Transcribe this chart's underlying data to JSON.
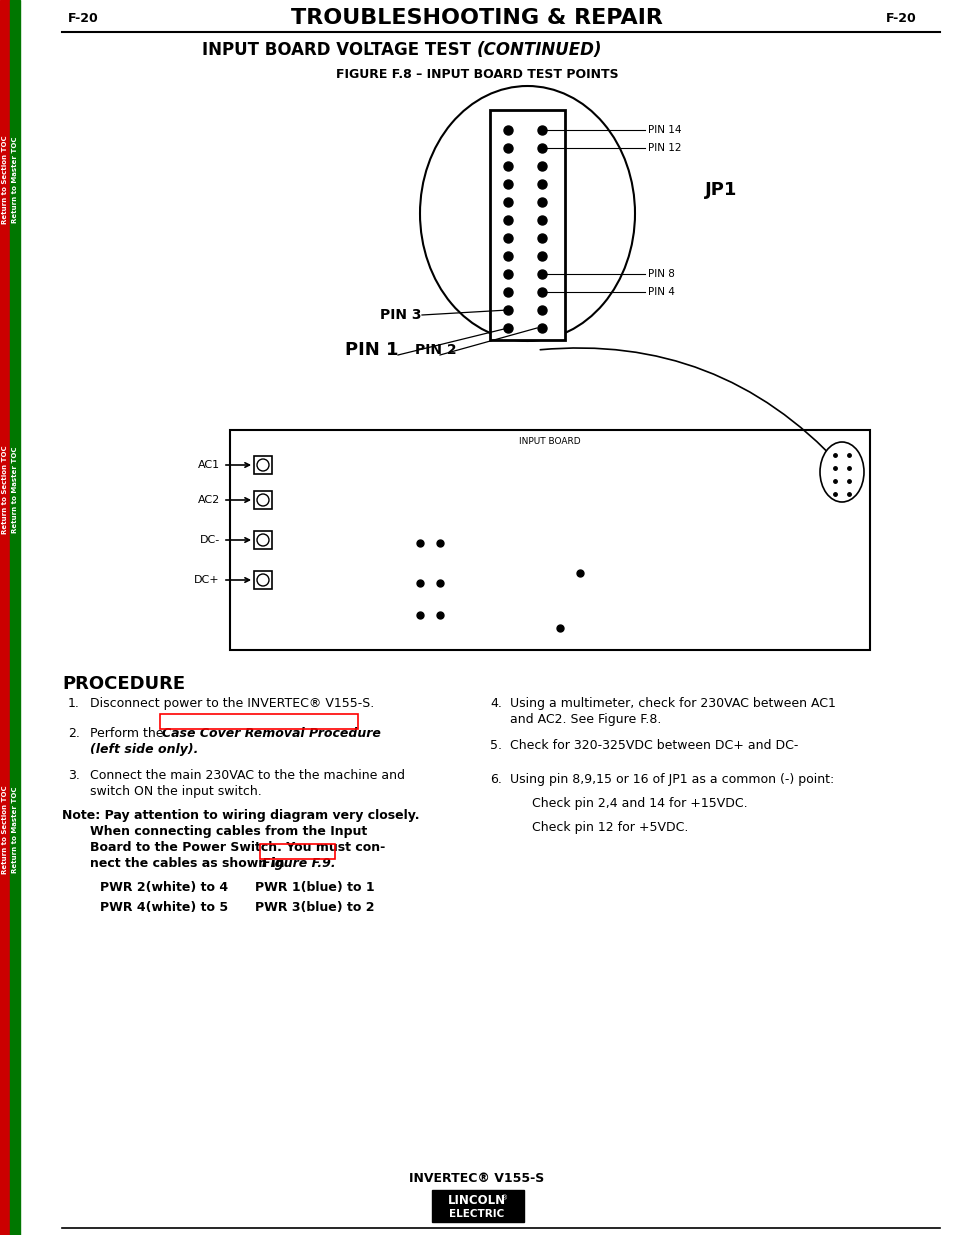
{
  "page_label_left": "F-20",
  "page_label_right": "F-20",
  "main_title": "TROUBLESHOOTING & REPAIR",
  "sub_title_plain": "INPUT BOARD VOLTAGE TEST ",
  "sub_title_italic": "(CONTINUED)",
  "figure_title": "FIGURE F.8 – INPUT BOARD TEST POINTS",
  "sidebar_red": "Return to Section TOC",
  "sidebar_green": "Return to Master TOC",
  "procedure_title": "PROCEDURE",
  "footer_text": "INVERTEC® V155-S",
  "background_color": "#ffffff",
  "text_color": "#000000",
  "red_color": "#cc0000",
  "green_color": "#007700"
}
